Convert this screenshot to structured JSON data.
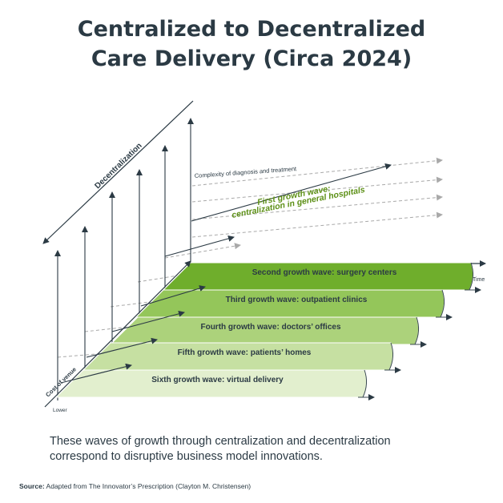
{
  "title": {
    "line1": "Centralized to Decentralized",
    "line2": "Care Delivery (Circa 2024)"
  },
  "diagram": {
    "axis_decentralization": "Decentralization",
    "axis_time": "Time",
    "axis_cost": "Cost of venue",
    "axis_lower": "Lower",
    "complexity_label": "Complexity of diagnosis and treatment",
    "first_wave_line1": "First growth wave:",
    "first_wave_line2": "centralization in general hospitals",
    "waves": [
      {
        "label": "Second growth wave: surgery centers",
        "color": "#6fae2c"
      },
      {
        "label": "Third growth wave: outpatient clinics",
        "color": "#94c65a"
      },
      {
        "label": "Fourth growth wave: doctors’ offices",
        "color": "#acd27b"
      },
      {
        "label": "Fifth growth wave: patients’ homes",
        "color": "#c6e0a2"
      },
      {
        "label": "Sixth growth wave: virtual delivery",
        "color": "#e2efce"
      }
    ],
    "colors": {
      "text": "#2b3a44",
      "first_wave_text": "#5c8f15",
      "dashed": "#a9a9a9",
      "outline": "#3b4a52"
    }
  },
  "caption": {
    "line1": "These waves of growth through centralization and decentralization",
    "line2": "correspond to disruptive business model innovations."
  },
  "source": {
    "label": "Source:",
    "text": " Adapted from The Innovator’s Prescription (Clayton M. Christensen)"
  }
}
